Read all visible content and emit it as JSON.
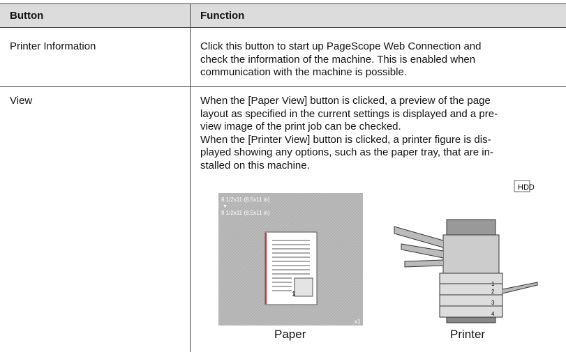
{
  "header": {
    "cells": [
      "Button",
      "Function"
    ]
  },
  "rows": [
    {
      "button": "Printer Information",
      "function": [
        "Click this button to start up PageScope Web Connection and",
        "check the information of the machine. This is enabled when",
        "communication with the machine is possible."
      ]
    },
    {
      "button": "View",
      "function": [
        "When the [Paper View] button is clicked, a preview of the page",
        "layout as specified in the current settings is displayed and a pre-",
        "view image of the print job can be checked.",
        "When the [Printer View] button is clicked, a printer figure is dis-",
        "played showing any options, such as the paper tray, that are in-",
        "stalled on this machine."
      ]
    }
  ],
  "figure": {
    "paper": {
      "caption": "Paper",
      "size_lines": [
        "8 1/2x11 (8.5x11 in)",
        "▼",
        "8 1/2x11 (8.5x11 in)"
      ],
      "page_number": "1",
      "copies": "x1"
    },
    "printer": {
      "caption": "Printer",
      "hdd": "HDD",
      "trays": [
        "1",
        "2",
        "3",
        "4"
      ]
    }
  }
}
